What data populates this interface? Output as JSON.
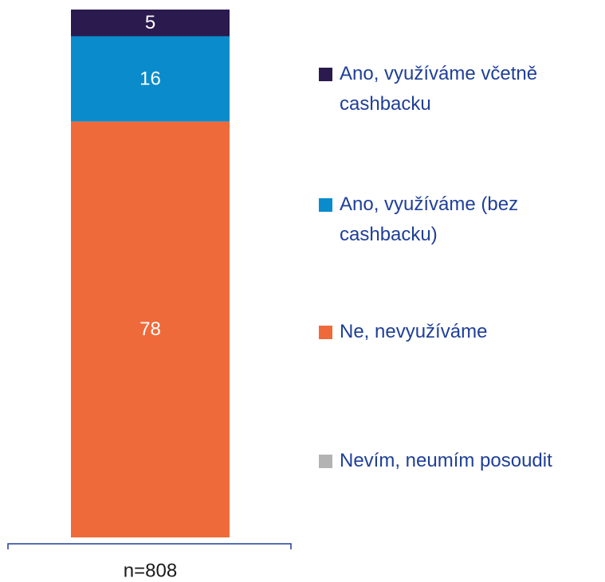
{
  "chart_data": {
    "type": "stacked-bar",
    "categories": [
      "n=808"
    ],
    "series": [
      {
        "name": "Nevím, neumím posoudit",
        "color": "#b3b3b3",
        "values": [
          0
        ]
      },
      {
        "name": "Ne, nevyužíváme",
        "color": "#ef6a3a",
        "values": [
          78
        ]
      },
      {
        "name": "Ano, využíváme (bez cashbacku)",
        "color": "#0a8ccc",
        "values": [
          16
        ]
      },
      {
        "name": "Ano, využíváme včetně cashbacku",
        "color": "#2a1a4e",
        "values": [
          5
        ]
      }
    ]
  }
}
